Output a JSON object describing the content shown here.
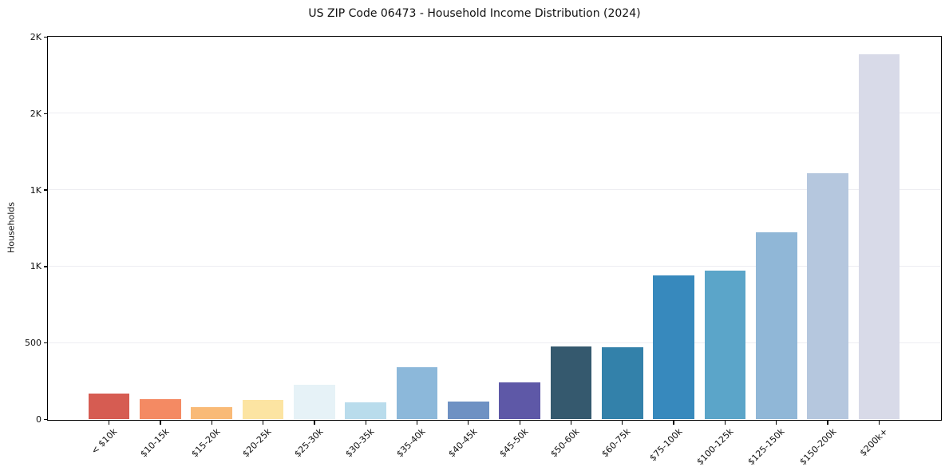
{
  "chart_data": {
    "type": "bar",
    "title": "US ZIP Code 06473 - Household Income Distribution (2024)",
    "xlabel": "",
    "ylabel": "Households",
    "categories": [
      "< $10k",
      "$10-15k",
      "$15-20k",
      "$20-25k",
      "$25-30k",
      "$30-35k",
      "$35-40k",
      "$40-45k",
      "$45-50k",
      "$50-60k",
      "$60-75k",
      "$75-100k",
      "$100-125k",
      "$125-150k",
      "$150-200k",
      "$200k+"
    ],
    "values": [
      170,
      135,
      80,
      130,
      225,
      110,
      340,
      115,
      245,
      475,
      470,
      940,
      975,
      1225,
      1610,
      2390
    ],
    "bar_colors": [
      "#d65c52",
      "#f48a63",
      "#f9ba77",
      "#fce4a2",
      "#e6f2f7",
      "#b9dcec",
      "#8cb8da",
      "#6e91c3",
      "#5e58a7",
      "#35596e",
      "#3381aa",
      "#3789bd",
      "#5ba5c9",
      "#90b7d7",
      "#b5c7de",
      "#d8dae8"
    ],
    "ylim": [
      0,
      2500
    ],
    "yticks": [
      {
        "value": 0,
        "label": "0"
      },
      {
        "value": 500,
        "label": "500"
      },
      {
        "value": 1000,
        "label": "1K"
      },
      {
        "value": 1500,
        "label": "1K"
      },
      {
        "value": 2000,
        "label": "2K"
      },
      {
        "value": 2500,
        "label": "2K"
      }
    ],
    "grid": {
      "horizontal": true,
      "vertical": false,
      "color": "#ededf2"
    },
    "legend_position": "none",
    "bar_width_fraction": 0.8
  },
  "colors": {
    "background": "#ffffff",
    "spine": "#000000",
    "text": "#111111",
    "gridline": "#ededf2"
  }
}
